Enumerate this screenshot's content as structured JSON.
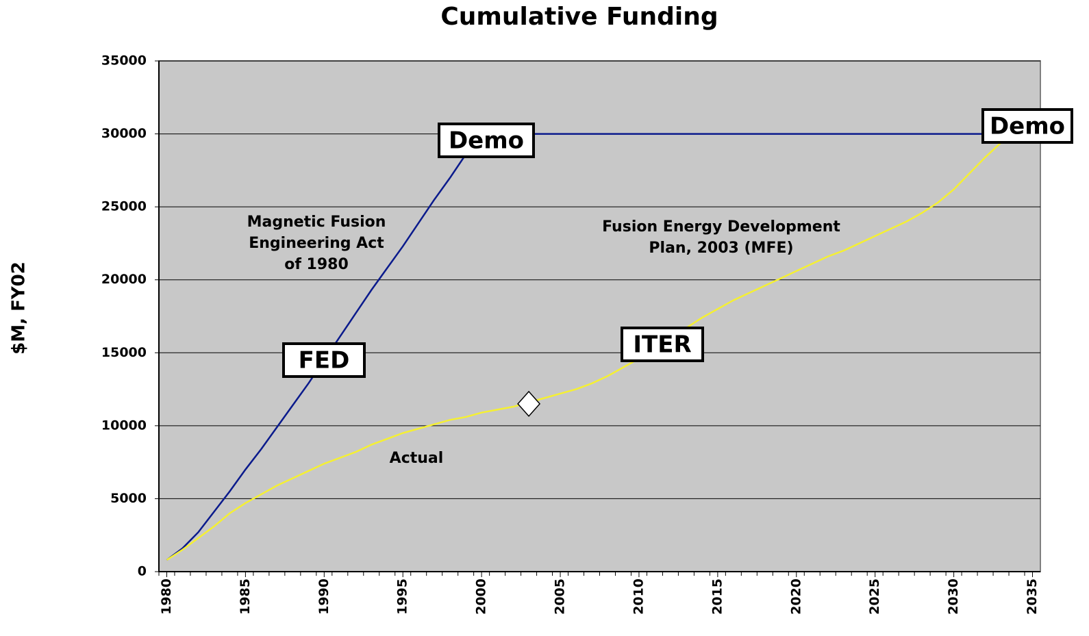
{
  "chart_data": {
    "type": "line",
    "title": "Cumulative Funding",
    "y_label": "$M, FY02",
    "x": [
      1980,
      1981,
      1982,
      1983,
      1984,
      1985,
      1986,
      1987,
      1988,
      1989,
      1990,
      1991,
      1992,
      1993,
      1994,
      1995,
      1996,
      1997,
      1998,
      1999,
      2000,
      2001,
      2002,
      2003,
      2004,
      2005,
      2006,
      2007,
      2008,
      2009,
      2010,
      2011,
      2012,
      2013,
      2014,
      2015,
      2016,
      2017,
      2018,
      2019,
      2020,
      2021,
      2022,
      2023,
      2024,
      2025,
      2026,
      2027,
      2028,
      2029,
      2030,
      2031,
      2032,
      2033
    ],
    "series": [
      {
        "color": "#0a1a8c",
        "values": [
          800,
          1600,
          2700,
          4100,
          5500,
          7000,
          8400,
          9900,
          11400,
          12900,
          14500,
          16100,
          17700,
          19300,
          20800,
          22300,
          23900,
          25500,
          27000,
          28600,
          30000,
          30000,
          30000,
          30000,
          30000,
          30000,
          30000,
          30000,
          30000,
          30000,
          30000,
          30000,
          30000,
          30000,
          30000,
          30000,
          30000,
          30000,
          30000,
          30000,
          30000,
          30000,
          30000,
          30000,
          30000,
          30000,
          30000,
          30000,
          30000,
          30000,
          30000,
          30000,
          30000,
          30000
        ]
      },
      {
        "color": "#f5f032",
        "values": [
          800,
          1500,
          2300,
          3100,
          4000,
          4700,
          5300,
          5900,
          6400,
          6900,
          7400,
          7800,
          8200,
          8700,
          9100,
          9500,
          9800,
          10100,
          10400,
          10600,
          10900,
          11100,
          11300,
          11600,
          11900,
          12200,
          12500,
          12900,
          13400,
          14000,
          14600,
          15300,
          16000,
          16700,
          17400,
          18000,
          18600,
          19100,
          19600,
          20100,
          20600,
          21100,
          21600,
          22000,
          22500,
          23000,
          23500,
          24000,
          24600,
          25300,
          26200,
          27300,
          28400,
          29400
        ]
      }
    ],
    "marker": {
      "x": 2003,
      "value": 11500
    },
    "xlim": [
      1979.5,
      2035.5
    ],
    "xticks": [
      1980,
      1985,
      1990,
      1995,
      2000,
      2005,
      2010,
      2015,
      2020,
      2025,
      2030,
      2035
    ],
    "ylim": [
      0,
      35000
    ],
    "yticks": [
      0,
      5000,
      10000,
      15000,
      20000,
      25000,
      30000,
      35000
    ],
    "grid": true,
    "annotations": [
      [
        "Magnetic Fusion",
        "Engineering Act",
        "of 1980"
      ],
      [
        "Fusion Energy Development",
        "Plan, 2003 (MFE)"
      ],
      [
        "Actual"
      ]
    ],
    "boxes": [
      "Demo",
      "FED",
      "ITER",
      "Demo"
    ]
  }
}
